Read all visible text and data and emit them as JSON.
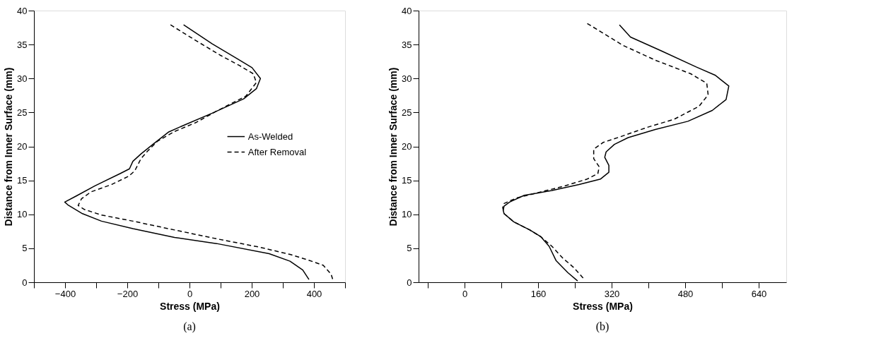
{
  "chart_data": [
    {
      "type": "line",
      "title": "(a)",
      "xlabel": "Stress  (MPa)",
      "ylabel": "Distance from Inner Surface  (mm)",
      "xlim": [
        -500,
        500
      ],
      "ylim": [
        0,
        40
      ],
      "xticks": [
        {
          "value": -500,
          "label": null
        },
        -400,
        {
          "value": -300,
          "label": null
        },
        -200,
        {
          "value": -100,
          "label": null
        },
        0,
        {
          "value": 100,
          "label": null
        },
        200,
        {
          "value": 300,
          "label": null
        },
        400,
        {
          "value": 500,
          "label": null
        }
      ],
      "yticks": [
        0,
        5,
        10,
        15,
        20,
        25,
        30,
        35,
        40
      ],
      "grid": false,
      "legend": "right",
      "marker": "none",
      "series": [
        {
          "name": "As-Welded",
          "color": "#000000",
          "line_style": "solid",
          "x": [
            -19,
            73,
            154,
            201,
            228,
            215,
            174,
            73,
            -14,
            -68,
            -115,
            -156,
            -182,
            -193,
            -223,
            -304,
            -364,
            -401,
            -391,
            -344,
            -283,
            -182,
            -48,
            87,
            256,
            323,
            364,
            384
          ],
          "values": [
            37.9,
            35.1,
            32.9,
            31.6,
            30,
            28.5,
            27,
            24.9,
            23.2,
            22.1,
            20.4,
            18.9,
            17.8,
            16.7,
            16,
            14.2,
            12.7,
            11.8,
            11.4,
            10.1,
            9.0,
            7.9,
            6.6,
            5.7,
            4.2,
            3.1,
            1.8,
            0.4
          ]
        },
        {
          "name": "After Removal",
          "color": "#000000",
          "line_style": "dashed",
          "x": [
            -61,
            20,
            100,
            161,
            205,
            215,
            181,
            87,
            20,
            -48,
            -102,
            -135,
            -156,
            -176,
            -196,
            -250,
            -317,
            -347,
            -358,
            -337,
            -283,
            -182,
            -48,
            87,
            222,
            323,
            380,
            430,
            455,
            462
          ],
          "values": [
            37.9,
            35.6,
            33.4,
            31.9,
            30.7,
            29.4,
            27.4,
            25.2,
            23.5,
            22.2,
            20.8,
            19.3,
            18.2,
            16.4,
            15.6,
            14.4,
            13.3,
            12.3,
            11.3,
            10.7,
            9.9,
            9.0,
            7.7,
            6.4,
            5.2,
            4.1,
            3.3,
            2.5,
            1.2,
            0.2
          ]
        }
      ]
    },
    {
      "type": "line",
      "title": "(b)",
      "xlabel": "Stress  (MPa)",
      "ylabel": "Distance from Inner Surface  (mm)",
      "xlim": [
        -100,
        700
      ],
      "ylim": [
        0,
        40
      ],
      "xticks": [
        {
          "value": -80,
          "label": null
        },
        0,
        {
          "value": 80,
          "label": null
        },
        160,
        {
          "value": 240,
          "label": null
        },
        320,
        {
          "value": 400,
          "label": null
        },
        480,
        {
          "value": 560,
          "label": null
        },
        640
      ],
      "yticks": [
        0,
        5,
        10,
        15,
        20,
        25,
        30,
        35,
        40
      ],
      "grid": false,
      "legend": "right",
      "marker": "none",
      "series": [
        {
          "name": "As-Welded",
          "color": "#000000",
          "line_style": "solid",
          "x": [
            337,
            361,
            427,
            504,
            545,
            575,
            569,
            539,
            486,
            415,
            356,
            326,
            308,
            305,
            314,
            314,
            296,
            249,
            190,
            130,
            98,
            86,
            84,
            86,
            107,
            142,
            166,
            184,
            199,
            225,
            246
          ],
          "values": [
            37.9,
            36.1,
            34.1,
            31.7,
            30.5,
            28.9,
            26.9,
            25.3,
            23.7,
            22.5,
            21.3,
            20.3,
            19.2,
            18.4,
            17.2,
            16.2,
            15.2,
            14.4,
            13.5,
            12.8,
            11.8,
            11.2,
            10.6,
            10.1,
            8.9,
            7.7,
            6.7,
            5.3,
            3.2,
            1.4,
            0.2
          ]
        },
        {
          "name": "After Removal",
          "color": "#000000",
          "line_style": "dashed",
          "x": [
            267,
            296,
            344,
            415,
            492,
            527,
            530,
            510,
            456,
            397,
            338,
            302,
            281,
            281,
            293,
            290,
            267,
            219,
            160,
            113,
            86,
            83,
            86,
            107,
            142,
            166,
            190,
            213,
            237,
            261
          ],
          "values": [
            38.1,
            36.9,
            34.9,
            32.7,
            30.7,
            29.3,
            27.6,
            25.9,
            24.0,
            22.8,
            21.4,
            20.6,
            19.6,
            18.2,
            17.0,
            16.0,
            15.2,
            14.2,
            13.2,
            12.4,
            11.6,
            11.0,
            10.1,
            8.9,
            7.7,
            6.7,
            5.3,
            3.6,
            2.2,
            0.4
          ]
        }
      ]
    }
  ]
}
